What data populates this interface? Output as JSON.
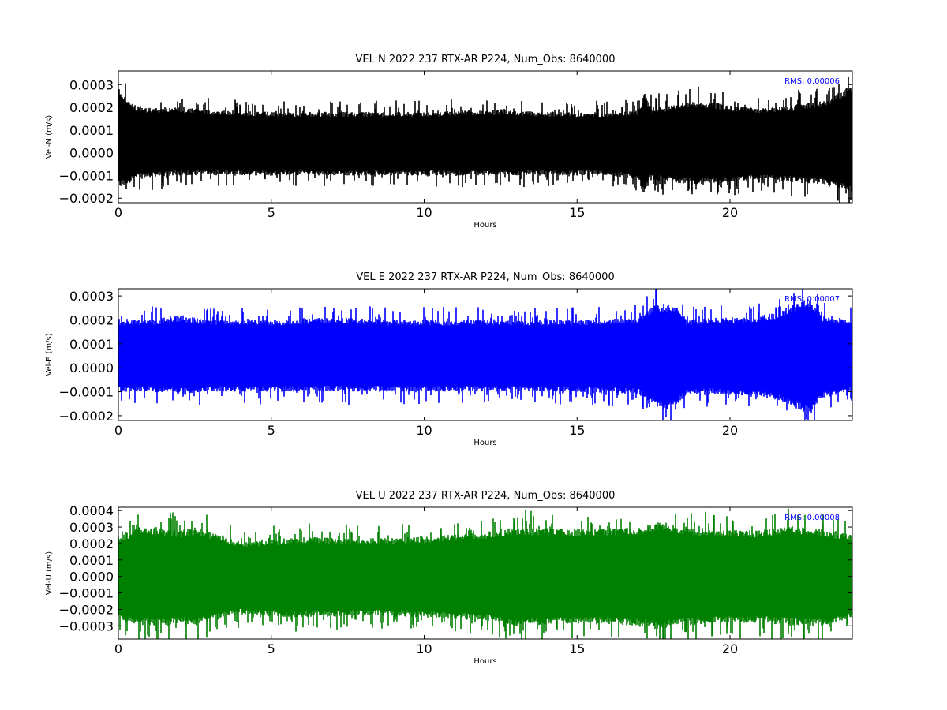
{
  "chart_data": [
    {
      "type": "line",
      "title": "VEL N 2022 237 RTX-AR  P224, Num_Obs: 8640000",
      "xlabel": "Hours",
      "ylabel": "Vel-N (m/s)",
      "xlim": [
        0,
        24
      ],
      "ylim": [
        -0.00022,
        0.00036
      ],
      "xticks": [
        "0",
        "5",
        "10",
        "15",
        "20"
      ],
      "yticks": [
        "−0.0002",
        "−0.0001",
        "0.0000",
        "0.0001",
        "0.0002",
        "0.0003"
      ],
      "color": "#000000",
      "rms_label": "RMS:  0.00006",
      "rms_color": "#0000ff",
      "series": [
        {
          "x": [
            0,
            0.5,
            1,
            2,
            3,
            5,
            8,
            10,
            12,
            14,
            16,
            17,
            17.2,
            17.4,
            18,
            19,
            20,
            21,
            22,
            23,
            23.5,
            24
          ],
          "upper": [
            0.00029,
            0.00021,
            0.0002,
            0.0002,
            0.00019,
            0.00018,
            0.00018,
            0.00018,
            0.00019,
            0.00018,
            0.00018,
            0.00019,
            0.00027,
            0.0002,
            0.00021,
            0.00023,
            0.00021,
            0.0002,
            0.00021,
            0.00023,
            0.00026,
            0.0003
          ],
          "lower": [
            -0.00016,
            -0.00012,
            -0.00011,
            -0.0001,
            -0.0001,
            -0.0001,
            -0.0001,
            -0.0001,
            -0.0001,
            -0.0001,
            -0.0001,
            -0.00012,
            -0.00019,
            -0.00012,
            -0.00013,
            -0.00014,
            -0.00013,
            -0.00012,
            -0.00013,
            -0.00014,
            -0.00016,
            -0.00018
          ]
        }
      ]
    },
    {
      "type": "line",
      "title": "VEL E 2022 237 RTX-AR  P224, Num_Obs: 8640000",
      "xlabel": "Hours",
      "ylabel": "Vel-E (m/s)",
      "xlim": [
        0,
        24
      ],
      "ylim": [
        -0.00022,
        0.00033
      ],
      "xticks": [
        "0",
        "5",
        "10",
        "15",
        "20"
      ],
      "yticks": [
        "−0.0002",
        "−0.0001",
        "0.0000",
        "0.0001",
        "0.0002",
        "0.0003"
      ],
      "color": "#0000ff",
      "rms_label": "RMS:  0.00007",
      "rms_color": "#0000ff",
      "series": [
        {
          "x": [
            0,
            1,
            2,
            3,
            5,
            7,
            9,
            11,
            13,
            15,
            17,
            17.5,
            17.9,
            18.3,
            18.6,
            19.5,
            20.5,
            21.5,
            22.3,
            22.6,
            23,
            24
          ],
          "upper": [
            0.0002,
            0.0002,
            0.00022,
            0.0002,
            0.0002,
            0.00021,
            0.0002,
            0.0002,
            0.0002,
            0.0002,
            0.00021,
            0.00026,
            0.00027,
            0.00025,
            0.0002,
            0.00021,
            0.00021,
            0.00023,
            0.00028,
            0.00029,
            0.00022,
            0.0002
          ],
          "lower": [
            -0.0001,
            -0.0001,
            -0.00011,
            -0.0001,
            -0.0001,
            -0.0001,
            -0.0001,
            -0.0001,
            -0.0001,
            -0.0001,
            -0.00011,
            -0.00016,
            -0.00018,
            -0.00015,
            -0.00011,
            -0.00011,
            -0.00012,
            -0.00013,
            -0.00018,
            -0.0002,
            -0.00013,
            -0.0001
          ]
        }
      ]
    },
    {
      "type": "line",
      "title": "VEL U 2022 237 RTX-AR  P224, Num_Obs: 8640000",
      "xlabel": "Hours",
      "ylabel": "Vel-U (m/s)",
      "xlim": [
        0,
        24
      ],
      "ylim": [
        -0.00038,
        0.00042
      ],
      "xticks": [
        "0",
        "5",
        "10",
        "15",
        "20"
      ],
      "yticks": [
        "−0.0003",
        "−0.0002",
        "−0.0001",
        "0.0000",
        "0.0001",
        "0.0002",
        "0.0003",
        "0.0004"
      ],
      "color": "#008000",
      "rms_label": "RMS:  0.00008",
      "rms_color": "#0000ff",
      "series": [
        {
          "x": [
            0,
            0.7,
            1.3,
            2,
            2.5,
            4,
            6,
            8,
            10,
            12,
            13,
            15,
            17,
            17.6,
            19,
            21,
            22,
            23,
            23.5,
            24
          ],
          "upper": [
            0.00025,
            0.0003,
            0.0003,
            0.00028,
            0.0003,
            0.00021,
            0.00024,
            0.00023,
            0.00024,
            0.00027,
            0.0003,
            0.00029,
            0.0003,
            0.00033,
            0.00029,
            0.00028,
            0.00031,
            0.00029,
            0.00027,
            0.00025
          ],
          "lower": [
            -0.00026,
            -0.0003,
            -0.0003,
            -0.00029,
            -0.0003,
            -0.00023,
            -0.00025,
            -0.00024,
            -0.00025,
            -0.00027,
            -0.0003,
            -0.00029,
            -0.0003,
            -0.00032,
            -0.00029,
            -0.00028,
            -0.0003,
            -0.0003,
            -0.00028,
            -0.00026
          ]
        }
      ]
    }
  ]
}
